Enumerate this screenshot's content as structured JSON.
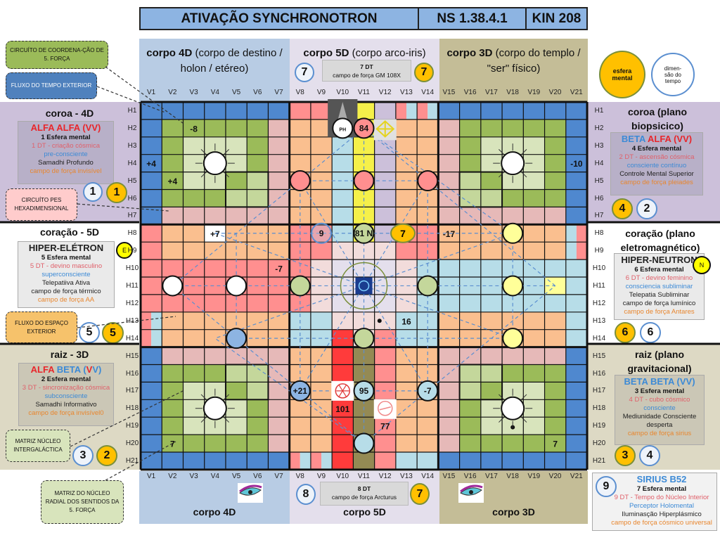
{
  "header": {
    "title": "ATIVAÇÃO SYNCHRONOTRON",
    "ns": "NS 1.38.4.1",
    "kin": "KIN 208"
  },
  "top_bands": [
    {
      "bold": "corpo 4D",
      "rest": " (corpo de destino / holon / etéreo)",
      "color": "#b8cce4"
    },
    {
      "bold": "corpo 5D",
      "rest": " (corpo arco-iris)",
      "color": "#e4dfec",
      "box": [
        "7 DT",
        "campo de força GM 108X"
      ],
      "badge_left": "7",
      "badge_right": "7"
    },
    {
      "bold": "corpo 3D",
      "rest": " (corpo do templo / \"ser\" físico)",
      "color": "#c4bd97"
    }
  ],
  "bottom_bands": [
    {
      "title": "corpo 4D"
    },
    {
      "title": "corpo 5D",
      "box": [
        "8 DT",
        "campo de força Arcturus"
      ],
      "badge_left": "8",
      "badge_right": "7"
    },
    {
      "title": "corpo 3D"
    }
  ],
  "legend": {
    "esfera": "esfera mental",
    "dimensao": "dimen-são do tempo"
  },
  "v_labels": [
    "V1",
    "V2",
    "V3",
    "V4",
    "V5",
    "V6",
    "V7",
    "V8",
    "V9",
    "V10",
    "V11",
    "V12",
    "V13",
    "V14",
    "V15",
    "V16",
    "V17",
    "V18",
    "V19",
    "V20",
    "V21"
  ],
  "h_labels": [
    "H1",
    "H2",
    "H3",
    "H4",
    "H5",
    "H6",
    "H7",
    "H8",
    "H9",
    "H10",
    "H11",
    "H12",
    "H13",
    "H14",
    "H15",
    "H16",
    "H17",
    "H18",
    "H19",
    "H20",
    "H21"
  ],
  "callouts": {
    "coord": "CIRCUÍTO DE COORDENA-ÇÃO DE 5. FORÇA",
    "tempo": "FLUXO DO TEMPO EXTERIOR",
    "pes": "CIRCUÍTO PES HEXADIMENSIONAL",
    "espaco": "FLUXO DO ESPAÇO EXTERIOR",
    "matriz": "MATRIZ NÚCLEO INTERGALÁCTICA",
    "radial": "MATRIZ DO NÚCLEO RADIAL DOS SENTIDOS DA 5. FORÇA"
  },
  "left_panels": [
    {
      "title": "coroa - 4D",
      "head": [
        {
          "t": "ALFA ALFA (VV)",
          "c": "#e8262b"
        }
      ],
      "lines": [
        "1 Esfera mental",
        "1 DT - criação cósmica",
        "pre-consciente",
        "Samadhi Profundo",
        "campo de força invisível"
      ],
      "badge_outline": "1",
      "badge_yellow": "1"
    },
    {
      "title": "coração - 5D",
      "head": [
        {
          "t": "HIPER-ELÉTRON",
          "c": "#222"
        }
      ],
      "lines": [
        "5 Esfera mental",
        "5 DT - devino masculino",
        "superconsciente",
        "Telepatiiva Ativa",
        "campo de força térmico",
        "campo de força AA"
      ],
      "badge_outline": "5",
      "badge_yellow": "5",
      "marker": "E"
    },
    {
      "title": "raiz - 3D",
      "head": [
        {
          "t": "ALFA ",
          "c": "#e8262b"
        },
        {
          "t": "BETA ",
          "c": "#3c8ad6"
        },
        {
          "t": "(",
          "c": "#3c8ad6"
        },
        {
          "t": "V",
          "c": "#e8262b"
        },
        {
          "t": "V)",
          "c": "#3c8ad6"
        }
      ],
      "lines": [
        "2 Esfera mental",
        "3 DT - sincronização  cósmica",
        "subconsciente",
        "Samadhi Informativo",
        "campo de força invisível0"
      ],
      "badge_outline": "3",
      "badge_yellow": "2"
    }
  ],
  "right_panels": [
    {
      "title": "coroa (plano biopsicico)",
      "head": [
        {
          "t": "BETA ",
          "c": "#3c8ad6"
        },
        {
          "t": "ALFA (VV)",
          "c": "#e8262b"
        }
      ],
      "lines": [
        "4 Esfera mental",
        "2 DT - ascensão cósmica",
        "consciente contínuo",
        "Controle Mental Superior",
        "campo de força pleiades"
      ],
      "badge_yellow": "4",
      "badge_outline": "2"
    },
    {
      "title": "coração (plano eletromagnético)",
      "head": [
        {
          "t": "HIPER-NEUTRON",
          "c": "#222"
        }
      ],
      "lines": [
        "6 Esfera mental",
        "6 DT - devino feminino",
        "consciencia subliminar",
        "Telepatia Subliminar",
        "campo de força lumínico",
        "campo de força Antares"
      ],
      "badge_yellow": "6",
      "badge_outline": "6",
      "marker": "N"
    },
    {
      "title": "raiz (plano gravitacional)",
      "head": [
        {
          "t": "BETA BETA  (VV)",
          "c": "#3c8ad6"
        }
      ],
      "lines": [
        "3 Esfera mental",
        "4 DT - cubo cósmico",
        "consciente",
        "Mediunidade Consciente desperta",
        "campo de força sirius"
      ],
      "badge_yellow": "3",
      "badge_outline": "4"
    }
  ],
  "sirius": {
    "title": "SIRIUS B52",
    "badge": "9",
    "lines": [
      "7 Esfera mental",
      "9 DT - Tempo do Núcleo Interior",
      "Perceptor Holomental",
      "Iluminasção Hiperplásmico",
      "campo de força cósmico universal"
    ]
  },
  "grid": {
    "palette": {
      "B": "#4f88cf",
      "G": "#9bbb59",
      "L": "#d8e4bc",
      "M": "#c4d79b",
      "P": "#e6b9b8",
      "O": "#fabf8f",
      "R": "#ff8f8f",
      "C": "#b7dde8",
      "Y": "#f5f04a",
      "V": "#ccc0da",
      "W": "#f2dcdb",
      "X": "#e4dfec",
      "D": "#ff3b3b",
      "K": "#948a54",
      "Z": "#ffff99",
      "w": "#ffffff",
      "I": "#555555"
    },
    "rows": [
      "BBBBBBBRRIYVSSBBBBBBB",
      "BGGGGGPOOIYVOOPGGGGGB",
      "BGLLLGPOOCYVOOPGLLLGB",
      "BGLLLGPOOCYVOOPGLLLGB",
      "BGLLGMPOOCYVOOPMGLLGB",
      "BGGGMMPOOCYVOOPMMGGGB",
      "BPPPPPPOOCYVOOPPPPPPB",
      "ROOwOOORRCYVRROOOOOOT",
      "ROOOOOORRWWWRROOOOOOT",
      "RRRRRRRRWXXXWCCCCCCCC",
      "RRRRRRRRWXXXWCCCCCCZC",
      "RRRRRRRRWXXXWCCCCCCCC",
      "SOOOOOOCCWWWCCOOOOOOC",
      "SOOOOOOCCDWRCCOOOOOOC",
      "BPPPPPPOODKROOPPPPPPB",
      "BGGGMMPOODKROOPMMGGGB",
      "BGLLGMPOODKROOPMGLLGB",
      "BGLLLGPOODKROOPGLLLGB",
      "BGLLLGPOODKROOPGLLLGB",
      "BGGGGGPOODKROOPGGGGGB",
      "BBBBBBBSSDKRCCBBBBBBB"
    ],
    "circles": [
      {
        "v": 4,
        "h": 4,
        "fill": "#ffffff",
        "sun": true
      },
      {
        "v": 18,
        "h": 4,
        "fill": "#ffffff",
        "sun": true
      },
      {
        "v": 4,
        "h": 18,
        "fill": "#ffffff",
        "sun": true
      },
      {
        "v": 18,
        "h": 18,
        "fill": "#ffffff",
        "sun": true
      },
      {
        "v": 10,
        "h": 2,
        "fill": "#ffffff",
        "label": "PH",
        "small": true
      },
      {
        "v": 11,
        "h": 2,
        "fill": "#ff8f8f",
        "label": "84"
      },
      {
        "v": 8,
        "h": 5,
        "fill": "#ff8f8f"
      },
      {
        "v": 11,
        "h": 5,
        "fill": "#ff8f8f"
      },
      {
        "v": 14,
        "h": 5,
        "fill": "#ff8f8f"
      },
      {
        "v": 9,
        "h": 8,
        "fill": "none",
        "stroke": "#5b8fd0",
        "label": "9"
      },
      {
        "v": 11,
        "h": 8,
        "fill": "#c4d79b",
        "label": "81 N"
      },
      {
        "v": 18,
        "h": 8,
        "fill": "#ffff99"
      },
      {
        "v": 2,
        "h": 11,
        "fill": "#ffffff"
      },
      {
        "v": 5,
        "h": 11,
        "fill": "#ffffff"
      },
      {
        "v": 8,
        "h": 11,
        "fill": "#c4d79b"
      },
      {
        "v": 14,
        "h": 11,
        "fill": "#c4d79b"
      },
      {
        "v": 18,
        "h": 11,
        "fill": "#ffff99"
      },
      {
        "v": 5,
        "h": 14,
        "fill": "#8db4e2"
      },
      {
        "v": 11,
        "h": 14,
        "fill": "#c4d79b"
      },
      {
        "v": 18,
        "h": 14,
        "fill": "#ffff99"
      },
      {
        "v": 8,
        "h": 17,
        "fill": "#8db4e2",
        "label": "+21"
      },
      {
        "v": 11,
        "h": 17,
        "fill": "#b7dde8",
        "label": "95"
      },
      {
        "v": 14,
        "h": 17,
        "fill": "#b7dde8",
        "label": "-7"
      },
      {
        "v": 11,
        "h": 20,
        "fill": "#b7dde8"
      }
    ],
    "badge_7": {
      "v": 13,
      "h": 8,
      "label": "7"
    },
    "texts": [
      {
        "v": 3,
        "h": 2,
        "t": "-8"
      },
      {
        "v": 1,
        "h": 4,
        "t": "+4"
      },
      {
        "v": 2,
        "h": 5,
        "t": "+4"
      },
      {
        "v": 4,
        "h": 8,
        "t": "+7"
      },
      {
        "v": 7,
        "h": 10,
        "t": "-7"
      },
      {
        "v": 15,
        "h": 8,
        "t": "-17"
      },
      {
        "v": 21,
        "h": 4,
        "t": "-10"
      },
      {
        "v": 13,
        "h": 13,
        "t": "16"
      },
      {
        "v": 10,
        "h": 18,
        "t": "101"
      },
      {
        "v": 12,
        "h": 19,
        "t": "77"
      },
      {
        "v": 2,
        "h": 20,
        "t": "7"
      },
      {
        "v": 20,
        "h": 20,
        "t": "7"
      }
    ]
  }
}
